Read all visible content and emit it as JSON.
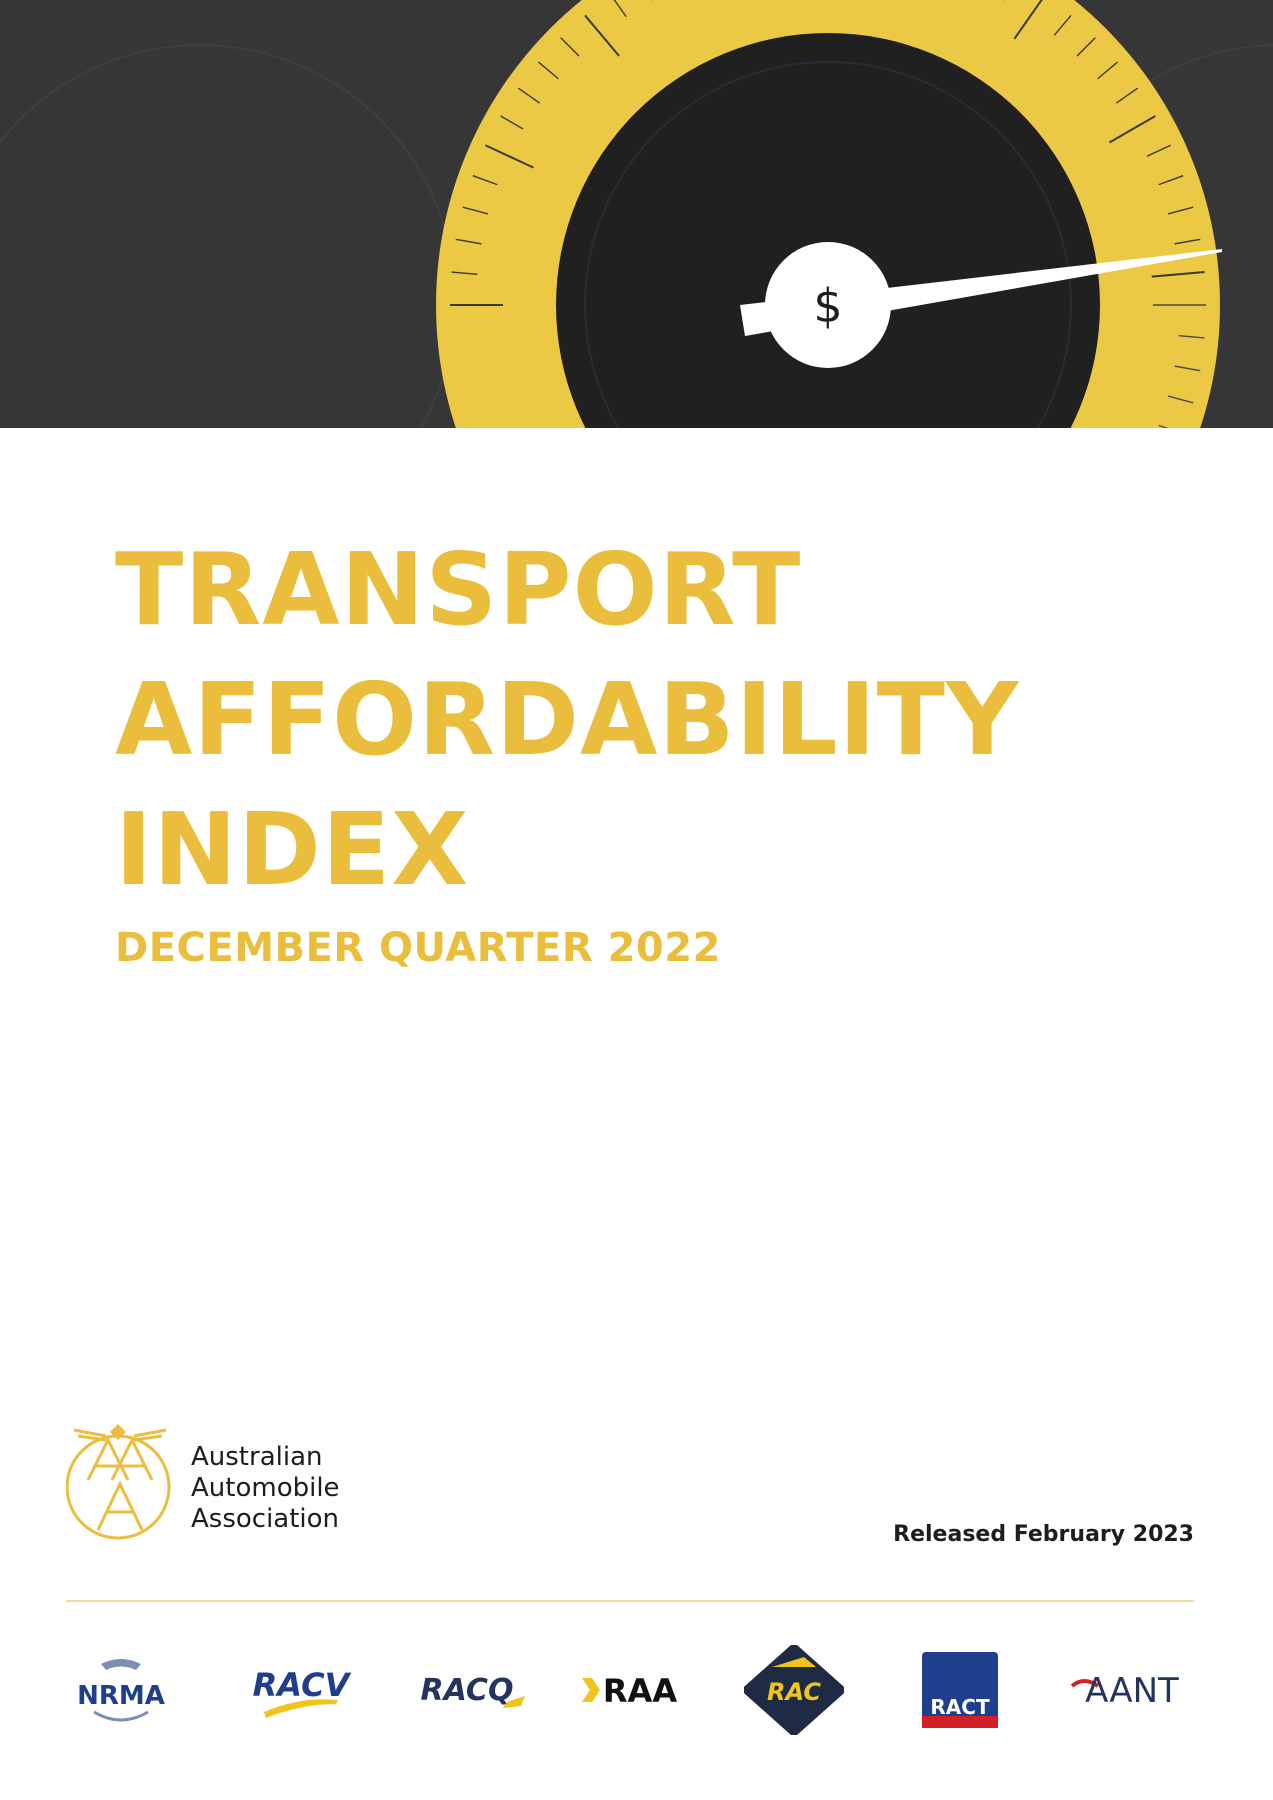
{
  "cover": {
    "title_lines": [
      "TRANSPORT",
      "AFFORDABILITY",
      "INDEX"
    ],
    "subtitle": "DECEMBER QUARTER 2022",
    "released": "Released February 2023",
    "gauge_symbol": "$"
  },
  "publisher": {
    "name_lines": [
      "Australian",
      "Automobile",
      "Association"
    ]
  },
  "member_clubs": [
    {
      "label": "NRMA",
      "icon": "nrma-logo"
    },
    {
      "label": "RACV",
      "icon": "racv-logo"
    },
    {
      "label": "RACQ",
      "icon": "racq-logo"
    },
    {
      "label": "RAA",
      "icon": "raa-logo"
    },
    {
      "label": "RAC",
      "icon": "rac-logo"
    },
    {
      "label": "RACT",
      "icon": "ract-logo"
    },
    {
      "label": "AANT",
      "icon": "aant-logo"
    }
  ],
  "colors": {
    "accent_yellow": "#ebbd3c",
    "banner_dark": "#363636",
    "text_dark": "#1d1d1b"
  }
}
